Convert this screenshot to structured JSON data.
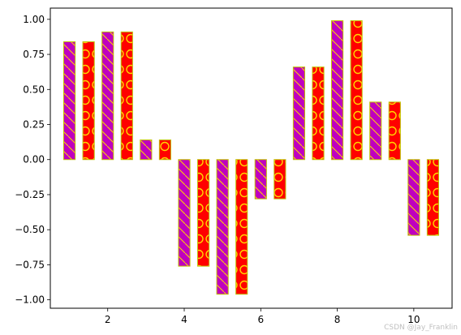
{
  "chart_data": {
    "type": "bar",
    "title": "",
    "xlabel": "",
    "ylabel": "",
    "xlim": [
      0.5,
      11.0
    ],
    "ylim": [
      -1.06,
      1.08
    ],
    "xticks": [
      2,
      4,
      6,
      8,
      10
    ],
    "yticks": [
      -1.0,
      -0.75,
      -0.5,
      -0.25,
      0.0,
      0.25,
      0.5,
      0.75,
      1.0
    ],
    "ytick_labels": [
      "−1.00",
      "−0.75",
      "−0.50",
      "−0.25",
      "0.00",
      "0.25",
      "0.50",
      "0.75",
      "1.00"
    ],
    "grid": false,
    "bar_width": 0.3,
    "series": [
      {
        "hatch": "diagonal",
        "x": [
          1,
          2,
          3,
          4,
          5,
          6,
          7,
          8,
          9,
          10
        ],
        "values": [
          0.84,
          0.91,
          0.14,
          -0.76,
          -0.96,
          -0.28,
          0.66,
          0.99,
          0.41,
          -0.54
        ]
      },
      {
        "hatch": "circles",
        "x": [
          1.5,
          2.5,
          3.5,
          4.5,
          5.5,
          6.5,
          7.5,
          8.5,
          9.5,
          10.5
        ],
        "values": [
          0.84,
          0.91,
          0.14,
          -0.76,
          -0.96,
          -0.28,
          0.66,
          0.99,
          0.41,
          -0.54
        ]
      }
    ]
  },
  "colors": {
    "series1_fill": "#bf00bf",
    "series2_fill": "#ff0000",
    "edge": "#bfbf00",
    "hatch": "#ffd700"
  },
  "watermark": "CSDN @Jay_Franklin"
}
